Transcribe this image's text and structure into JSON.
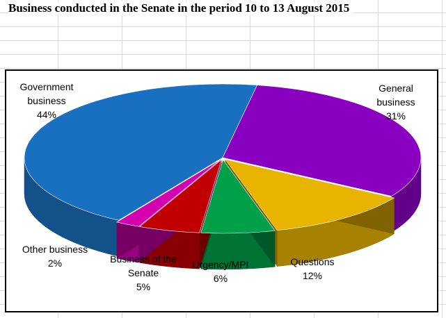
{
  "sheet": {
    "title": "Business conducted in the Senate in the period 10 to 13 August 2015"
  },
  "chart_data": {
    "type": "pie",
    "variant": "3d-exploded",
    "title": "Business conducted in the Senate in the period 10 to 13 August 2015",
    "slices": [
      {
        "label_lines": [
          "General",
          "business"
        ],
        "value": 31,
        "value_label": "31%",
        "color": "#8a00c0"
      },
      {
        "label_lines": [
          "Questions"
        ],
        "value": 12,
        "value_label": "12%",
        "color": "#e8b400"
      },
      {
        "label_lines": [
          "Urgency/MPI"
        ],
        "value": 6,
        "value_label": "6%",
        "color": "#00a04a"
      },
      {
        "label_lines": [
          "Business of the",
          "Senate"
        ],
        "value": 5,
        "value_label": "5%",
        "color": "#c00000"
      },
      {
        "label_lines": [
          "Other business"
        ],
        "value": 2,
        "value_label": "2%",
        "color": "#d400b0"
      },
      {
        "label_lines": [
          "Government",
          "business"
        ],
        "value": 44,
        "value_label": "44%",
        "color": "#1a70c0"
      }
    ],
    "legend": "none",
    "data_labels": "outside"
  }
}
